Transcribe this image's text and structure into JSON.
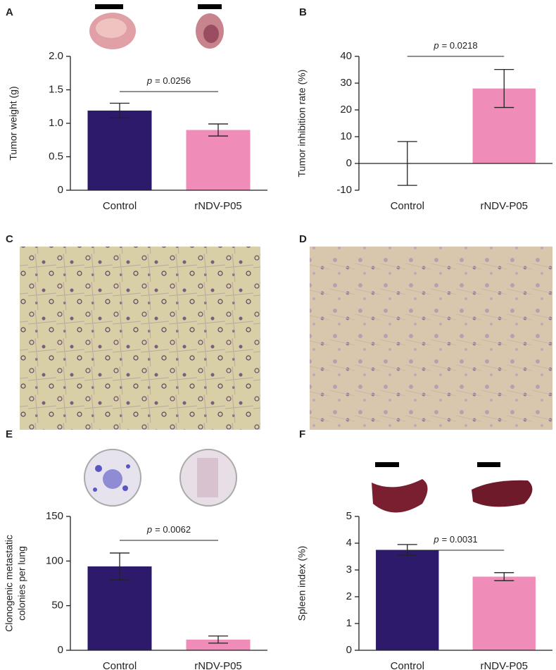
{
  "chart_data": [
    {
      "type": "bar",
      "panel": "A",
      "categories": [
        "Control",
        "rNDV-P05"
      ],
      "values": [
        1.19,
        0.9
      ],
      "errors": [
        0.11,
        0.09
      ],
      "colors": [
        "#2e1a6b",
        "#f08cb8"
      ],
      "ylabel": "Tumor weight (g)",
      "ylim": [
        0,
        2
      ],
      "yticks": [
        0,
        0.5,
        {
          "value": 1,
          "label": "1.0"
        },
        {
          "value": 1.5,
          "label": "1.5"
        },
        {
          "value": 2,
          "label": "2.0"
        }
      ],
      "significance": {
        "symbol": "p",
        "text": "= 0.0256"
      }
    },
    {
      "type": "bar",
      "panel": "B",
      "categories": [
        "Control",
        "rNDV-P05"
      ],
      "values": [
        0,
        28
      ],
      "errors": [
        8.2,
        7.1
      ],
      "colors": [
        "#2e1a6b",
        "#f08cb8"
      ],
      "ylabel": "Tumor inhibition rate (%)",
      "ylim": [
        -10,
        40
      ],
      "yticks": [
        -10,
        0,
        10,
        20,
        30,
        40
      ],
      "significance": {
        "symbol": "p",
        "text": "= 0.0218"
      }
    },
    {
      "type": "bar",
      "panel": "E",
      "categories": [
        "Control",
        "rNDV-P05"
      ],
      "values": [
        94,
        12
      ],
      "errors": [
        15,
        4
      ],
      "colors": [
        "#2e1a6b",
        "#f08cb8"
      ],
      "ylabel": [
        "Clonogenic metastatic",
        "colonies per lung"
      ],
      "ylim": [
        0,
        150
      ],
      "yticks": [
        0,
        50,
        100,
        150
      ],
      "significance": {
        "symbol": "p",
        "text": "= 0.0062"
      }
    },
    {
      "type": "bar",
      "panel": "F",
      "categories": [
        "Control",
        "rNDV-P05"
      ],
      "values": [
        3.75,
        2.75
      ],
      "errors": [
        0.2,
        0.15
      ],
      "colors": [
        "#2e1a6b",
        "#f08cb8"
      ],
      "ylabel": "Spleen index (%)",
      "ylim": [
        0,
        5
      ],
      "yticks": [
        0,
        1,
        2,
        3,
        4,
        5
      ],
      "significance": {
        "symbol": "p",
        "text": "= 0.0031"
      }
    }
  ],
  "images": [
    {
      "panel": "C"
    },
    {
      "panel": "D"
    }
  ]
}
